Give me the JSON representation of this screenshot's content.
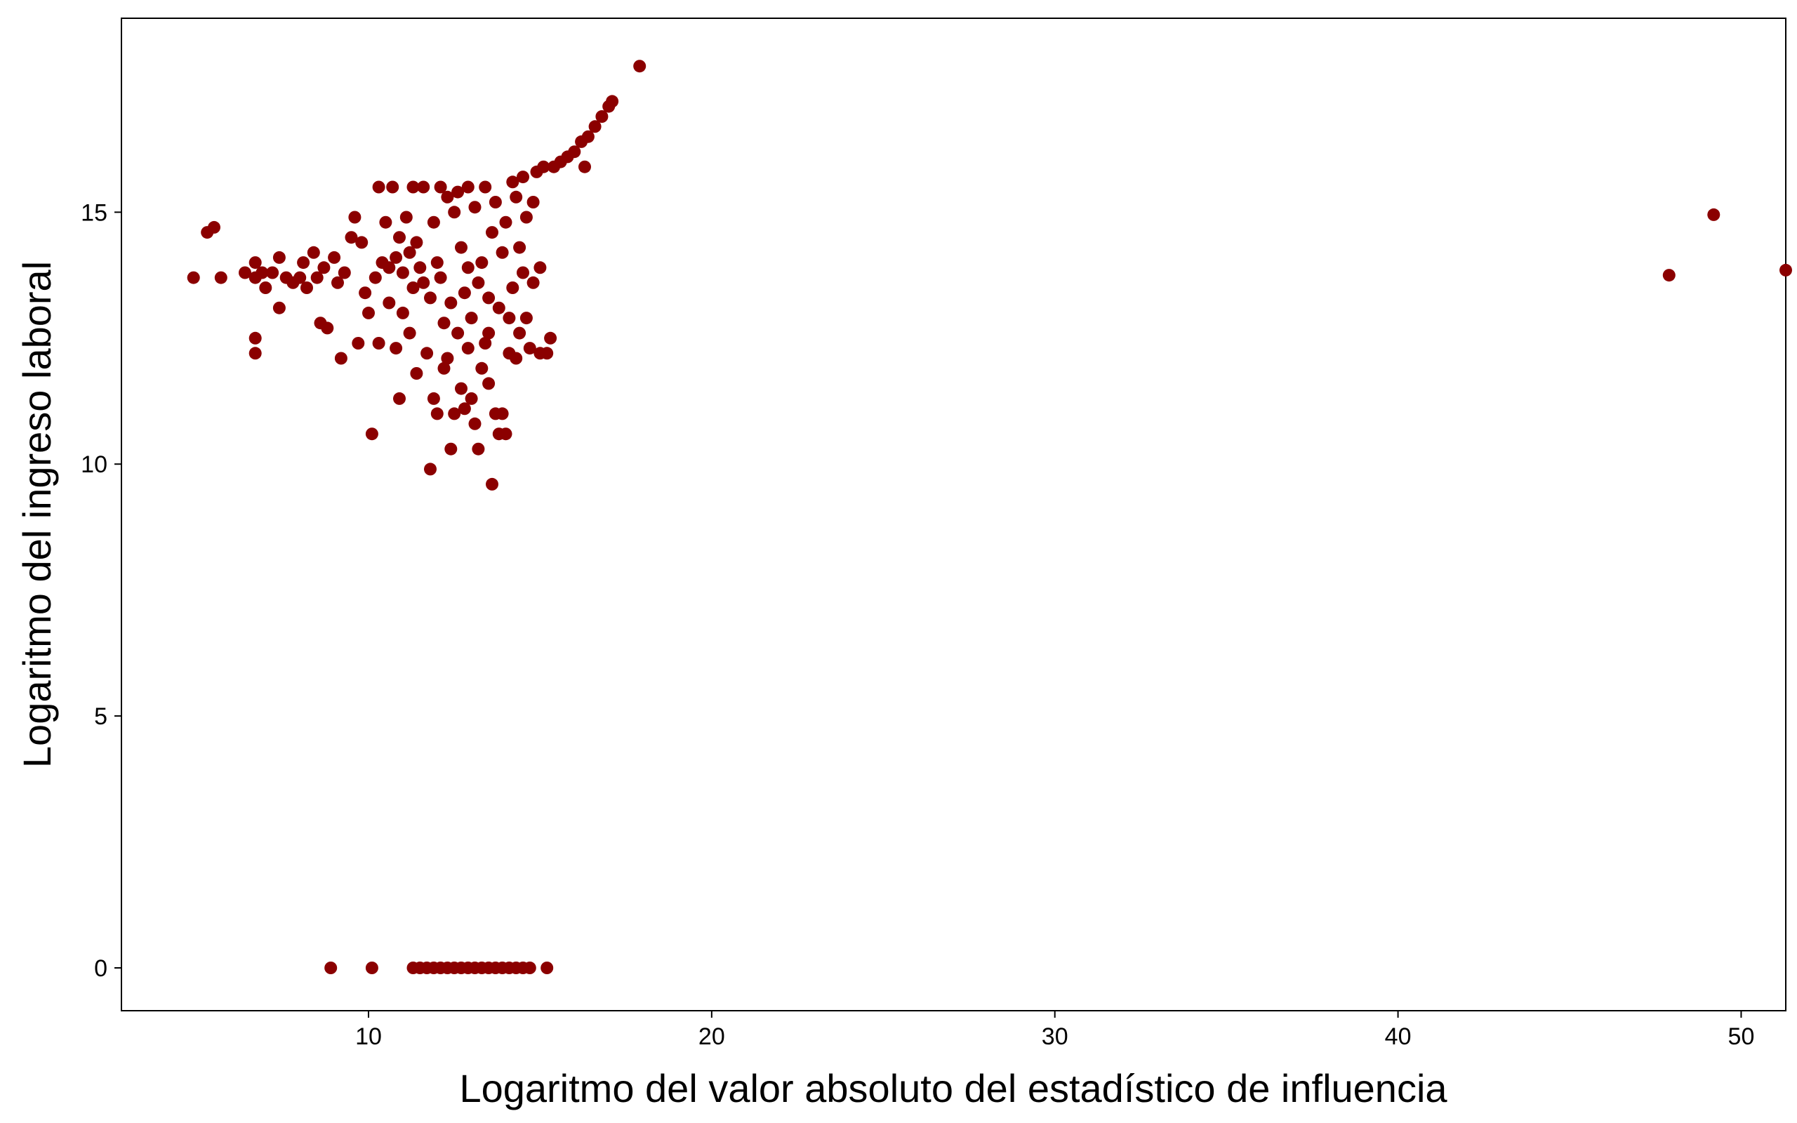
{
  "chart_data": {
    "type": "scatter",
    "title": "",
    "xlabel": "Logaritmo del valor absoluto del estadístico de influencia",
    "ylabel": "Logaritmo del ingreso laboral",
    "xlim": [
      2.8,
      51.3
    ],
    "ylim": [
      -0.85,
      18.85
    ],
    "x_ticks": [
      10,
      20,
      30,
      40,
      50
    ],
    "x_tick_labels": [
      "10",
      "20",
      "30",
      "40",
      "50"
    ],
    "y_ticks": [
      0,
      5,
      10,
      15
    ],
    "y_tick_labels": [
      "0",
      "5",
      "10",
      "15"
    ],
    "grid": false,
    "legend": "none",
    "point_color": "#8B0000",
    "series": [
      {
        "points": [
          [
            4.9,
            13.7
          ],
          [
            5.3,
            14.6
          ],
          [
            5.5,
            14.7
          ],
          [
            5.7,
            13.7
          ],
          [
            6.4,
            13.8
          ],
          [
            6.7,
            14.0
          ],
          [
            6.7,
            13.7
          ],
          [
            6.9,
            13.8
          ],
          [
            7.0,
            13.5
          ],
          [
            7.2,
            13.8
          ],
          [
            7.4,
            13.1
          ],
          [
            7.4,
            14.1
          ],
          [
            6.7,
            12.5
          ],
          [
            6.7,
            12.2
          ],
          [
            7.6,
            13.7
          ],
          [
            7.8,
            13.6
          ],
          [
            8.0,
            13.7
          ],
          [
            8.1,
            14.0
          ],
          [
            8.2,
            13.5
          ],
          [
            8.4,
            14.2
          ],
          [
            8.5,
            13.7
          ],
          [
            8.7,
            13.9
          ],
          [
            8.6,
            12.8
          ],
          [
            8.8,
            12.7
          ],
          [
            9.0,
            14.1
          ],
          [
            9.1,
            13.6
          ],
          [
            9.2,
            12.1
          ],
          [
            9.3,
            13.8
          ],
          [
            9.5,
            14.5
          ],
          [
            9.6,
            14.9
          ],
          [
            9.7,
            12.4
          ],
          [
            9.8,
            14.4
          ],
          [
            9.9,
            13.4
          ],
          [
            10.0,
            13.0
          ],
          [
            10.1,
            10.6
          ],
          [
            10.2,
            13.7
          ],
          [
            10.3,
            15.5
          ],
          [
            10.3,
            12.4
          ],
          [
            10.5,
            14.8
          ],
          [
            10.6,
            13.2
          ],
          [
            10.7,
            15.5
          ],
          [
            10.8,
            12.3
          ],
          [
            10.9,
            11.3
          ],
          [
            11.0,
            13.0
          ],
          [
            11.1,
            14.9
          ],
          [
            11.2,
            12.6
          ],
          [
            11.3,
            15.5
          ],
          [
            11.4,
            11.8
          ],
          [
            11.5,
            13.9
          ],
          [
            11.6,
            15.5
          ],
          [
            11.7,
            12.2
          ],
          [
            11.8,
            9.9
          ],
          [
            11.9,
            11.3
          ],
          [
            12.0,
            11.0
          ],
          [
            12.1,
            15.5
          ],
          [
            12.2,
            11.9
          ],
          [
            12.3,
            15.3
          ],
          [
            12.4,
            10.3
          ],
          [
            12.5,
            11.0
          ],
          [
            12.6,
            15.4
          ],
          [
            12.7,
            11.5
          ],
          [
            12.8,
            11.1
          ],
          [
            12.9,
            15.5
          ],
          [
            13.0,
            11.3
          ],
          [
            13.1,
            10.8
          ],
          [
            13.2,
            10.3
          ],
          [
            13.3,
            11.9
          ],
          [
            13.4,
            15.5
          ],
          [
            13.5,
            11.6
          ],
          [
            13.6,
            9.6
          ],
          [
            13.7,
            11.0
          ],
          [
            13.8,
            10.6
          ],
          [
            13.9,
            11.0
          ],
          [
            14.0,
            10.6
          ],
          [
            14.1,
            12.2
          ],
          [
            14.2,
            15.6
          ],
          [
            14.3,
            12.1
          ],
          [
            14.4,
            12.6
          ],
          [
            14.5,
            15.7
          ],
          [
            14.6,
            12.9
          ],
          [
            14.7,
            12.3
          ],
          [
            14.8,
            13.6
          ],
          [
            14.9,
            15.8
          ],
          [
            15.0,
            12.2
          ],
          [
            15.1,
            15.9
          ],
          [
            15.2,
            12.2
          ],
          [
            15.3,
            12.5
          ],
          [
            15.4,
            15.9
          ],
          [
            15.6,
            16.0
          ],
          [
            15.8,
            16.1
          ],
          [
            16.0,
            16.2
          ],
          [
            16.2,
            16.4
          ],
          [
            16.3,
            15.9
          ],
          [
            16.4,
            16.5
          ],
          [
            16.6,
            16.7
          ],
          [
            16.8,
            16.9
          ],
          [
            17.0,
            17.1
          ],
          [
            17.1,
            17.2
          ],
          [
            17.9,
            17.9
          ],
          [
            10.4,
            14.0
          ],
          [
            10.6,
            13.9
          ],
          [
            10.8,
            14.1
          ],
          [
            11.0,
            13.8
          ],
          [
            11.2,
            14.2
          ],
          [
            11.4,
            14.4
          ],
          [
            11.6,
            13.6
          ],
          [
            11.8,
            13.3
          ],
          [
            12.0,
            14.0
          ],
          [
            12.2,
            12.8
          ],
          [
            12.4,
            13.2
          ],
          [
            12.6,
            12.6
          ],
          [
            12.8,
            13.4
          ],
          [
            13.0,
            12.9
          ],
          [
            13.2,
            13.6
          ],
          [
            13.4,
            12.4
          ],
          [
            13.6,
            14.6
          ],
          [
            13.8,
            13.1
          ],
          [
            14.0,
            14.8
          ],
          [
            14.2,
            13.5
          ],
          [
            14.4,
            14.3
          ],
          [
            14.6,
            14.9
          ],
          [
            14.8,
            15.2
          ],
          [
            15.0,
            13.9
          ],
          [
            11.9,
            14.8
          ],
          [
            12.5,
            15.0
          ],
          [
            13.1,
            15.1
          ],
          [
            13.7,
            15.2
          ],
          [
            14.3,
            15.3
          ],
          [
            12.3,
            12.1
          ],
          [
            12.9,
            12.3
          ],
          [
            13.5,
            12.6
          ],
          [
            14.1,
            12.9
          ],
          [
            11.3,
            13.5
          ],
          [
            10.9,
            14.5
          ],
          [
            12.7,
            14.3
          ],
          [
            13.3,
            14.0
          ],
          [
            13.9,
            14.2
          ],
          [
            12.1,
            13.7
          ],
          [
            12.9,
            13.9
          ],
          [
            13.5,
            13.3
          ],
          [
            14.5,
            13.8
          ]
        ]
      },
      {
        "points": [
          [
            47.9,
            13.75
          ],
          [
            49.2,
            14.95
          ],
          [
            51.3,
            13.85
          ]
        ]
      },
      {
        "points": [
          [
            8.9,
            0
          ],
          [
            10.1,
            0
          ],
          [
            11.3,
            0
          ],
          [
            11.5,
            0
          ],
          [
            11.7,
            0
          ],
          [
            11.9,
            0
          ],
          [
            12.1,
            0
          ],
          [
            12.3,
            0
          ],
          [
            12.5,
            0
          ],
          [
            12.7,
            0
          ],
          [
            12.9,
            0
          ],
          [
            13.1,
            0
          ],
          [
            13.3,
            0
          ],
          [
            13.5,
            0
          ],
          [
            13.7,
            0
          ],
          [
            13.9,
            0
          ],
          [
            14.1,
            0
          ],
          [
            14.3,
            0
          ],
          [
            14.5,
            0
          ],
          [
            14.7,
            0
          ],
          [
            15.2,
            0
          ]
        ]
      }
    ]
  }
}
